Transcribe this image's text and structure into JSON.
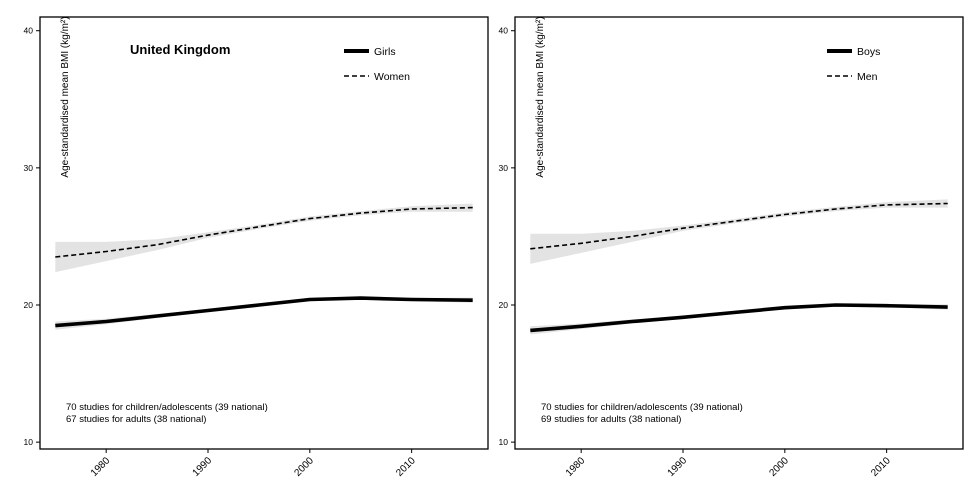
{
  "chart_data": [
    {
      "type": "line",
      "title": "United Kingdom",
      "xlabel": "",
      "ylabel": "Age-standardised mean BMI (kg/m²)",
      "xlim": [
        1973.5,
        2017.5
      ],
      "ylim": [
        9.5,
        41
      ],
      "x_ticks": [
        1980,
        1990,
        2000,
        2010
      ],
      "y_ticks": [
        10,
        20,
        30,
        40
      ],
      "legend_position": "top-right",
      "series": [
        {
          "name": "Girls",
          "style": "solid",
          "points": [
            [
              1975,
              18.5
            ],
            [
              1980,
              18.8
            ],
            [
              1985,
              19.2
            ],
            [
              1990,
              19.6
            ],
            [
              1995,
              20.0
            ],
            [
              2000,
              20.4
            ],
            [
              2005,
              20.5
            ],
            [
              2010,
              20.4
            ],
            [
              2016,
              20.35
            ]
          ],
          "ci_lower": [
            18.2,
            18.6,
            19.05,
            19.5,
            19.9,
            20.3,
            20.4,
            20.3,
            20.15
          ],
          "ci_upper": [
            18.8,
            19.0,
            19.35,
            19.7,
            20.1,
            20.5,
            20.6,
            20.5,
            20.55
          ]
        },
        {
          "name": "Women",
          "style": "dashed",
          "points": [
            [
              1975,
              23.5
            ],
            [
              1980,
              23.9
            ],
            [
              1985,
              24.4
            ],
            [
              1990,
              25.1
            ],
            [
              1995,
              25.7
            ],
            [
              2000,
              26.3
            ],
            [
              2005,
              26.7
            ],
            [
              2010,
              27.0
            ],
            [
              2016,
              27.1
            ]
          ],
          "ci_lower": [
            22.4,
            23.2,
            24.0,
            24.9,
            25.55,
            26.15,
            26.55,
            26.8,
            26.8
          ],
          "ci_upper": [
            24.6,
            24.6,
            24.8,
            25.3,
            25.85,
            26.45,
            26.85,
            27.2,
            27.4
          ]
        }
      ],
      "notes": [
        "70 studies for children/adolescents (39 national)",
        "67 studies for adults (38 national)"
      ]
    },
    {
      "type": "line",
      "title": "",
      "xlabel": "",
      "ylabel": "Age-standardised mean BMI (kg/m²)",
      "xlim": [
        1973.5,
        2017.5
      ],
      "ylim": [
        9.5,
        41
      ],
      "x_ticks": [
        1980,
        1990,
        2000,
        2010
      ],
      "y_ticks": [
        10,
        20,
        30,
        40
      ],
      "legend_position": "top-right",
      "series": [
        {
          "name": "Boys",
          "style": "solid",
          "points": [
            [
              1975,
              18.15
            ],
            [
              1980,
              18.45
            ],
            [
              1985,
              18.8
            ],
            [
              1990,
              19.1
            ],
            [
              1995,
              19.45
            ],
            [
              2000,
              19.8
            ],
            [
              2005,
              20.0
            ],
            [
              2010,
              19.95
            ],
            [
              2016,
              19.85
            ]
          ],
          "ci_lower": [
            17.85,
            18.25,
            18.65,
            19.0,
            19.35,
            19.7,
            19.9,
            19.85,
            19.65
          ],
          "ci_upper": [
            18.45,
            18.65,
            18.95,
            19.2,
            19.55,
            19.9,
            20.1,
            20.05,
            20.05
          ]
        },
        {
          "name": "Men",
          "style": "dashed",
          "points": [
            [
              1975,
              24.1
            ],
            [
              1980,
              24.5
            ],
            [
              1985,
              25.0
            ],
            [
              1990,
              25.6
            ],
            [
              1995,
              26.1
            ],
            [
              2000,
              26.6
            ],
            [
              2005,
              27.0
            ],
            [
              2010,
              27.3
            ],
            [
              2016,
              27.4
            ]
          ],
          "ci_lower": [
            23.0,
            23.8,
            24.6,
            25.4,
            25.95,
            26.45,
            26.85,
            27.1,
            27.1
          ],
          "ci_upper": [
            25.2,
            25.2,
            25.4,
            25.8,
            26.25,
            26.75,
            27.15,
            27.5,
            27.7
          ]
        }
      ],
      "notes": [
        "70 studies for children/adolescents (39 national)",
        "69 studies for adults (38 national)"
      ]
    }
  ]
}
